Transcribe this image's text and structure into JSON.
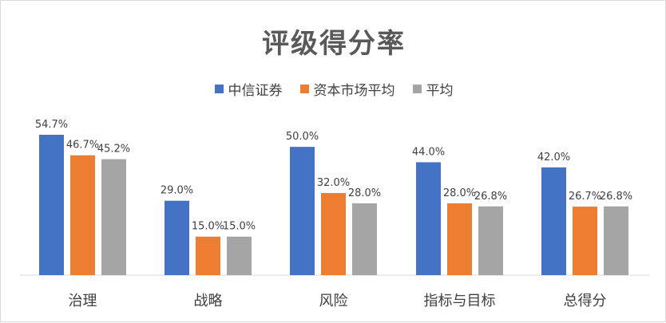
{
  "chart_data": {
    "type": "bar",
    "title": "评级得分率",
    "categories": [
      "治理",
      "战略",
      "风险",
      "指标与目标",
      "总得分"
    ],
    "series": [
      {
        "name": "中信证券",
        "color": "#4472C4",
        "values": [
          54.7,
          29.0,
          50.0,
          44.0,
          42.0
        ],
        "labels": [
          "54.7%",
          "29.0%",
          "50.0%",
          "44.0%",
          "42.0%"
        ]
      },
      {
        "name": "资本市场平均",
        "color": "#ED7D31",
        "values": [
          46.7,
          15.0,
          32.0,
          28.0,
          26.7
        ],
        "labels": [
          "46.7%",
          "15.0%",
          "32.0%",
          "28.0%",
          "26.7%"
        ]
      },
      {
        "name": "平均",
        "color": "#A5A5A5",
        "values": [
          45.2,
          15.0,
          28.0,
          26.8,
          26.8
        ],
        "labels": [
          "45.2%",
          "15.0%",
          "28.0%",
          "26.8%",
          "26.8%"
        ]
      }
    ],
    "ylim": [
      0,
      60
    ],
    "legend": "top-center",
    "grid": false
  }
}
